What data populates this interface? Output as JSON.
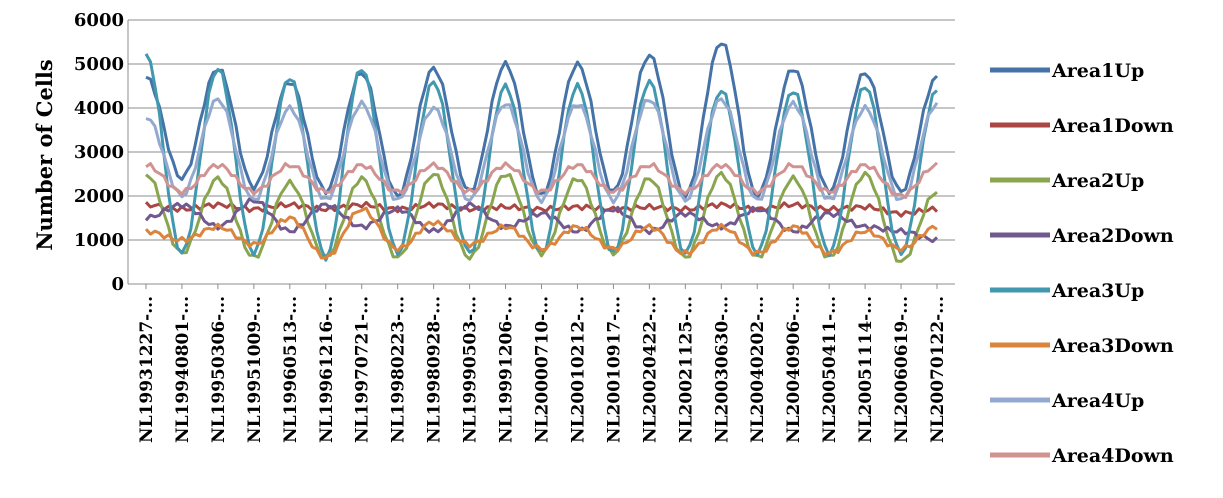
{
  "chart_data": {
    "type": "line",
    "title": "",
    "xlabel": "",
    "ylabel": "Number of Cells",
    "ylim": [
      0,
      6000
    ],
    "yticks": [
      "0",
      "1000",
      "2000",
      "3000",
      "4000",
      "5000",
      "6000"
    ],
    "grid": true,
    "legend_position": "right",
    "categories": [
      "NL19931227-...",
      "NL19940801-...",
      "NL19950306-...",
      "NL19951009-...",
      "NL19960513-...",
      "NL19961216-...",
      "NL19970721-...",
      "NL19980223-...",
      "NL19980928-...",
      "NL19990503-...",
      "NL19991206-...",
      "NL20000710-...",
      "NL20010212-...",
      "NL20010917-...",
      "NL20020422-...",
      "NL20021125-...",
      "NL20030630-...",
      "NL20040202-...",
      "NL20040906-...",
      "NL20050411-...",
      "NL20051114-...",
      "NL20060619-...",
      "NL20070122-..."
    ],
    "series": [
      {
        "name": "Area1Up",
        "color": "#4572A7",
        "values": [
          4700,
          2400,
          4900,
          2200,
          4600,
          2100,
          4800,
          2000,
          4900,
          2100,
          5000,
          2000,
          5000,
          2100,
          5200,
          2000,
          5500,
          2000,
          4900,
          2100,
          4800,
          2100,
          4700
        ]
      },
      {
        "name": "Area1Down",
        "color": "#AA4643",
        "values": [
          1800,
          1700,
          1800,
          1700,
          1800,
          1700,
          1800,
          1700,
          1800,
          1700,
          1750,
          1700,
          1750,
          1700,
          1750,
          1700,
          1800,
          1700,
          1800,
          1700,
          1750,
          1600,
          1700
        ]
      },
      {
        "name": "Area2Up",
        "color": "#89A54E",
        "values": [
          2500,
          700,
          2400,
          600,
          2300,
          600,
          2400,
          600,
          2500,
          600,
          2500,
          700,
          2400,
          700,
          2400,
          600,
          2500,
          600,
          2400,
          600,
          2500,
          500,
          2100
        ]
      },
      {
        "name": "Area2Down",
        "color": "#71588F",
        "values": [
          1500,
          1800,
          1300,
          1900,
          1200,
          1800,
          1300,
          1700,
          1200,
          1800,
          1300,
          1600,
          1200,
          1700,
          1200,
          1600,
          1300,
          1700,
          1200,
          1600,
          1300,
          1200,
          1000
        ]
      },
      {
        "name": "Area3Up",
        "color": "#4198AF",
        "values": [
          5200,
          700,
          4900,
          700,
          4700,
          600,
          4900,
          700,
          4600,
          700,
          4500,
          700,
          4500,
          700,
          4600,
          700,
          4400,
          700,
          4400,
          700,
          4500,
          700,
          4400
        ]
      },
      {
        "name": "Area3Down",
        "color": "#DB843D",
        "values": [
          1200,
          1000,
          1300,
          900,
          1500,
          600,
          1700,
          800,
          1400,
          900,
          1300,
          800,
          1300,
          800,
          1300,
          700,
          1300,
          700,
          1300,
          700,
          1200,
          800,
          1300
        ]
      },
      {
        "name": "Area4Up",
        "color": "#93A9CF",
        "values": [
          3800,
          2000,
          4200,
          1900,
          4000,
          1900,
          4100,
          1900,
          4000,
          1900,
          4100,
          1900,
          4100,
          1900,
          4200,
          1900,
          4200,
          1900,
          4100,
          1900,
          4000,
          1900,
          4100
        ]
      },
      {
        "name": "Area4Down",
        "color": "#D19392",
        "values": [
          2700,
          2100,
          2700,
          2100,
          2700,
          2100,
          2700,
          2100,
          2700,
          2100,
          2700,
          2100,
          2700,
          2100,
          2700,
          2100,
          2700,
          2100,
          2700,
          2100,
          2700,
          2000,
          2700
        ]
      }
    ]
  }
}
